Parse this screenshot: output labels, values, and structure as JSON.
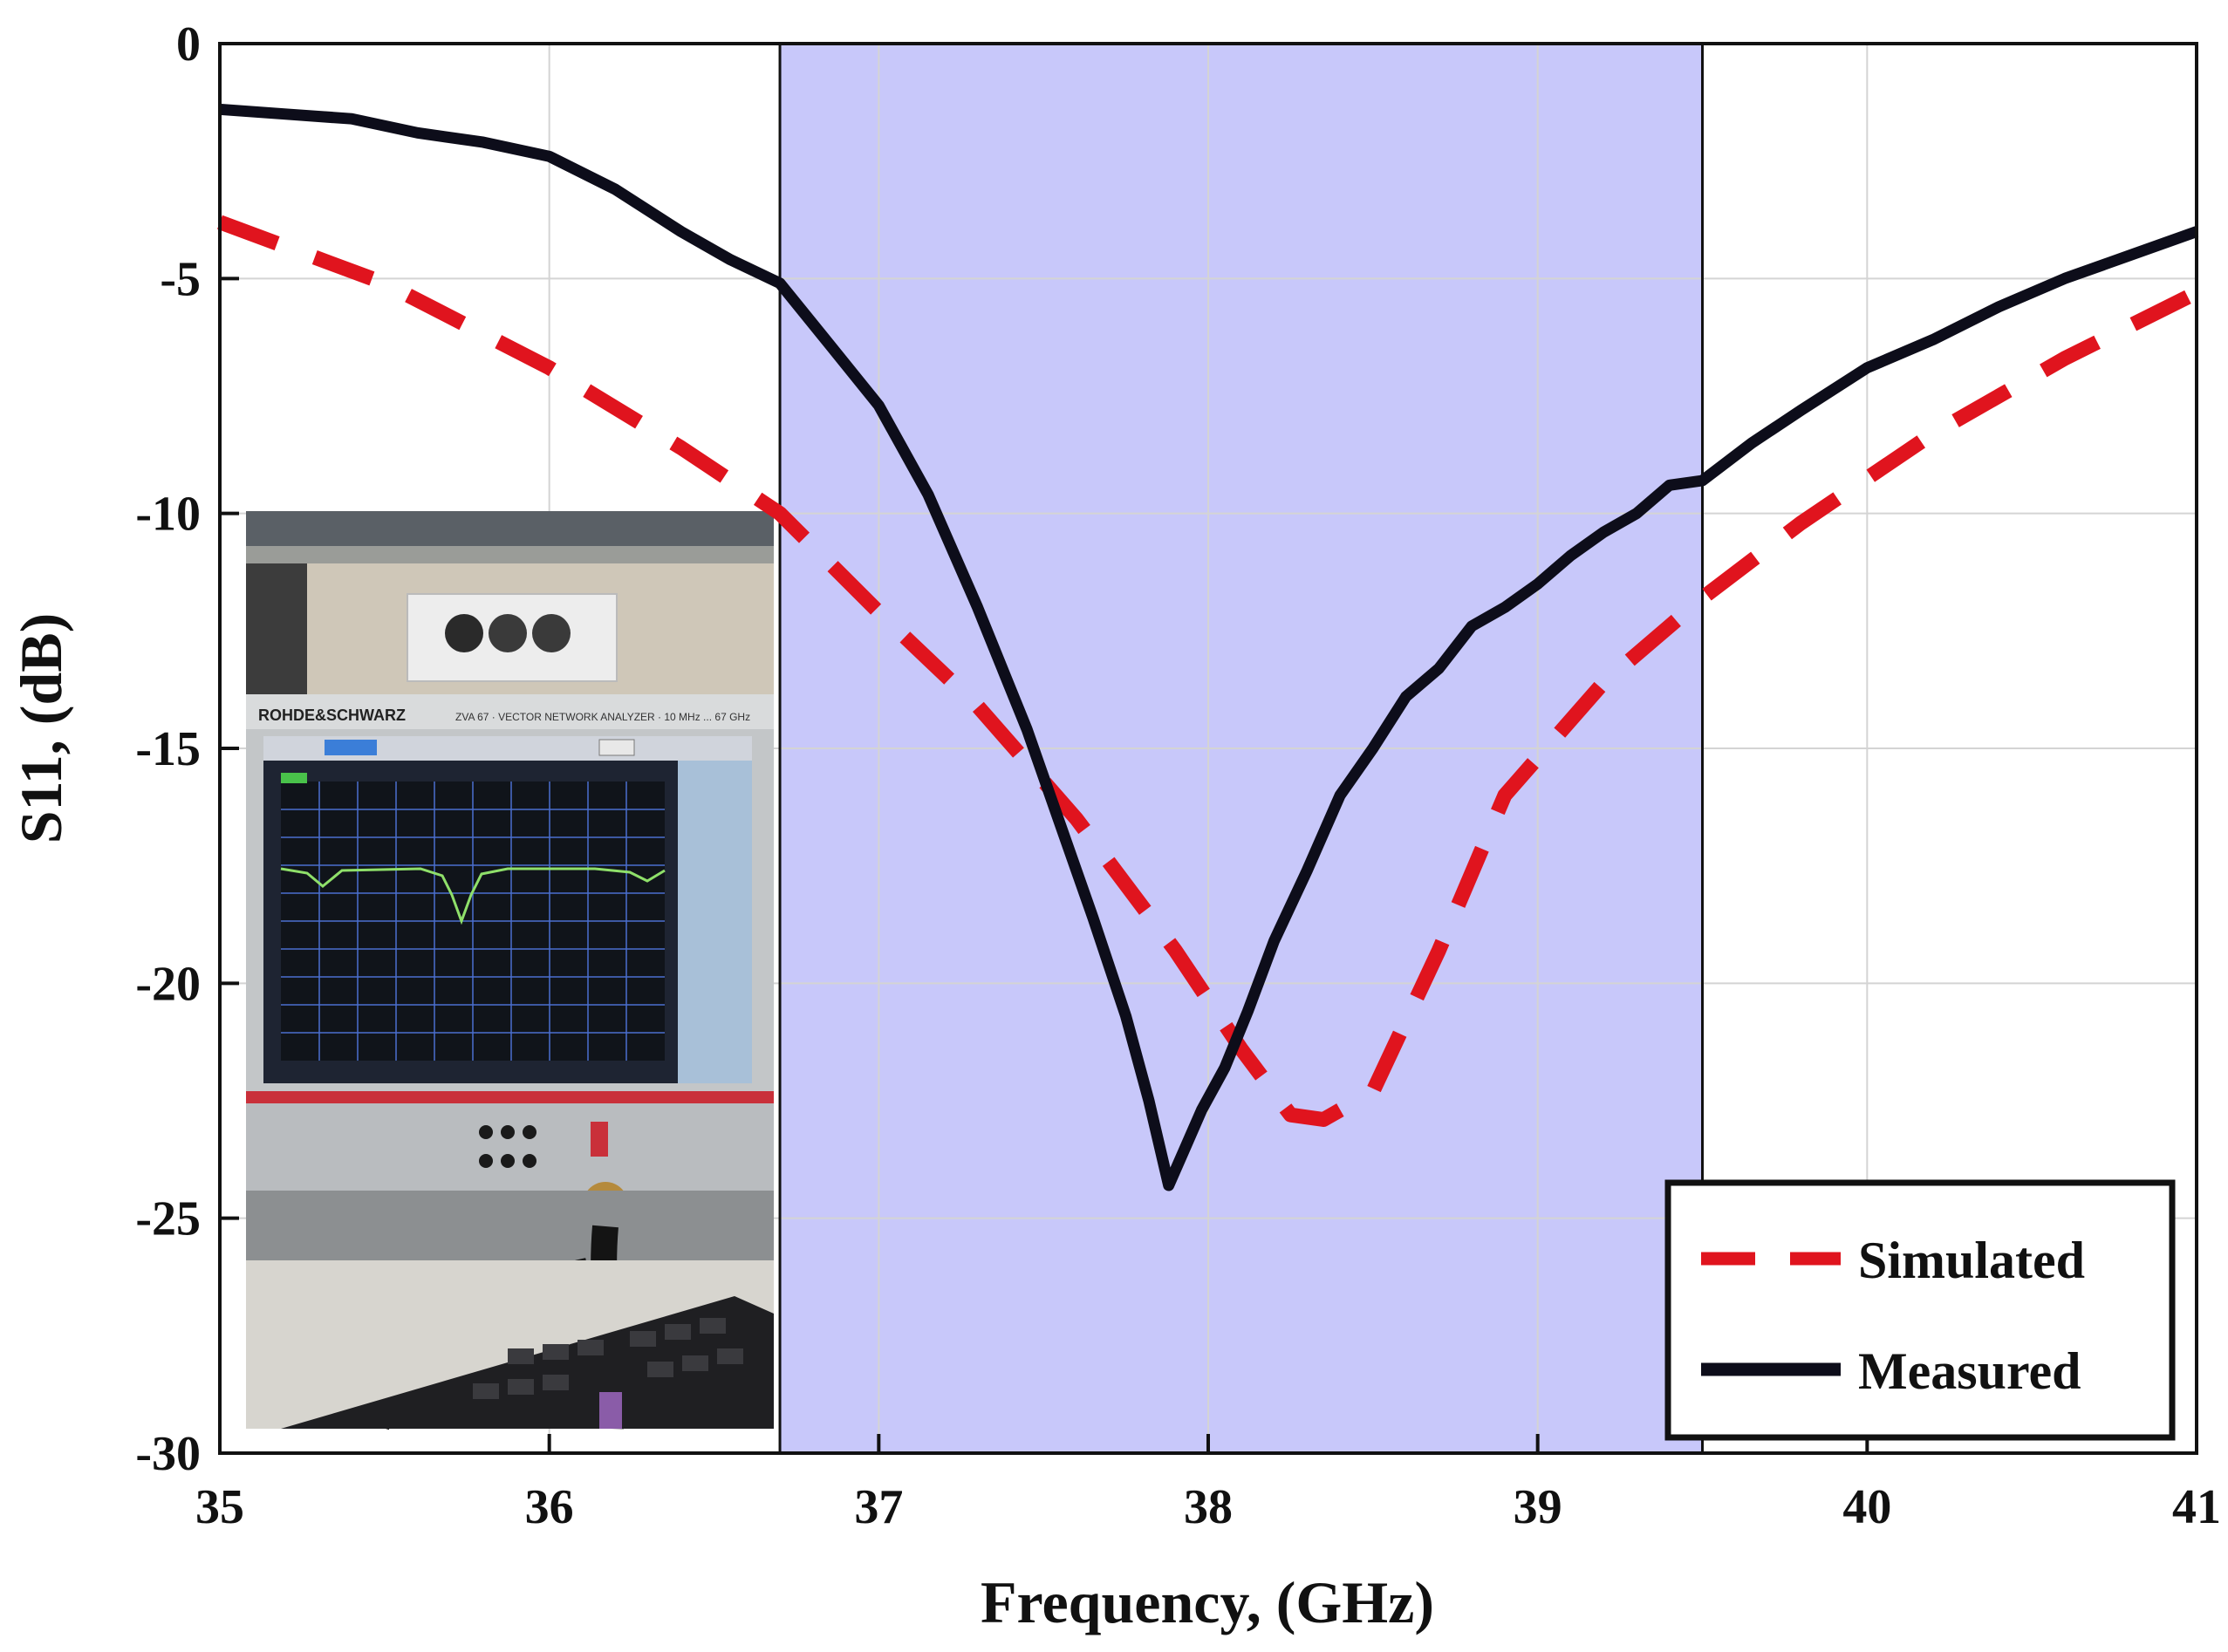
{
  "chart_data": {
    "type": "line",
    "title": "",
    "xlabel": "Frequency, (GHz)",
    "ylabel": "S11, (dB)",
    "xlim": [
      35,
      41
    ],
    "ylim": [
      -30,
      0
    ],
    "xticks": [
      35,
      36,
      37,
      38,
      39,
      40,
      41
    ],
    "yticks": [
      0,
      -5,
      -10,
      -15,
      -20,
      -25,
      -30
    ],
    "grid": true,
    "legend_position": "bottom-right",
    "highlight_band": {
      "x": [
        36.7,
        39.5
      ],
      "color": "#c8c8fa"
    },
    "inset": {
      "description": "VNA measurement photo",
      "brand_text": "ROHDE&SCHWARZ",
      "model_text": "ZVA 67 · VECTOR NETWORK ANALYZER · 10 MHz ... 67 GHz"
    },
    "series": [
      {
        "name": "Simulated",
        "style": "dashed",
        "color": "#e0141e",
        "x": [
          35,
          35.5,
          36,
          36.4,
          36.7,
          37.0,
          37.3,
          37.6,
          37.9,
          38.1,
          38.25,
          38.35,
          38.5,
          38.7,
          38.9,
          39.2,
          39.5,
          39.8,
          40.2,
          40.6,
          41
        ],
        "y": [
          -3.8,
          -5.1,
          -6.9,
          -8.6,
          -10.0,
          -12.1,
          -14.1,
          -16.5,
          -19.3,
          -21.4,
          -22.8,
          -22.9,
          -22.3,
          -19.3,
          -16.0,
          -13.6,
          -11.8,
          -10.2,
          -8.3,
          -6.7,
          -5.3
        ]
      },
      {
        "name": "Measured",
        "style": "solid",
        "color": "#0d0d1a",
        "x": [
          35,
          35.2,
          35.4,
          35.6,
          35.8,
          36.0,
          36.2,
          36.4,
          36.55,
          36.7,
          36.85,
          37.0,
          37.15,
          37.3,
          37.45,
          37.55,
          37.65,
          37.75,
          37.82,
          37.88,
          37.93,
          37.98,
          38.05,
          38.12,
          38.2,
          38.3,
          38.4,
          38.5,
          38.6,
          38.7,
          38.8,
          38.9,
          39.0,
          39.1,
          39.2,
          39.3,
          39.4,
          39.5,
          39.65,
          39.8,
          40.0,
          40.2,
          40.4,
          40.6,
          40.8,
          41
        ],
        "y": [
          -1.4,
          -1.5,
          -1.6,
          -1.9,
          -2.1,
          -2.4,
          -3.1,
          -4.0,
          -4.6,
          -5.1,
          -6.4,
          -7.7,
          -9.6,
          -12.0,
          -14.6,
          -16.6,
          -18.6,
          -20.7,
          -22.5,
          -24.3,
          -23.5,
          -22.7,
          -21.8,
          -20.6,
          -19.1,
          -17.6,
          -16.0,
          -15.0,
          -13.9,
          -13.3,
          -12.4,
          -12.0,
          -11.5,
          -10.9,
          -10.4,
          -10.0,
          -9.4,
          -9.3,
          -8.5,
          -7.8,
          -6.9,
          -6.3,
          -5.6,
          -5.0,
          -4.5,
          -4.0
        ]
      }
    ]
  }
}
